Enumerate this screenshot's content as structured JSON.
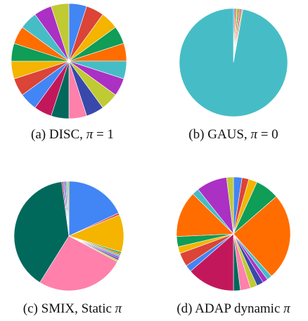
{
  "palette": [
    "#4285f4",
    "#db4437",
    "#f4b400",
    "#0f9d58",
    "#ff6d00",
    "#46bdc6",
    "#ab30c4",
    "#3949ab",
    "#c2185b",
    "#00695c",
    "#ff80ab",
    "#c0ca33"
  ],
  "chart_data": [
    {
      "type": "pie",
      "caption": {
        "prefix": "(a) DISC, ",
        "pi": "π",
        "suffix": " = 1"
      },
      "slices": [
        {
          "value": 1,
          "color": "#4285f4"
        },
        {
          "value": 1,
          "color": "#db4437"
        },
        {
          "value": 1,
          "color": "#f4b400"
        },
        {
          "value": 1,
          "color": "#0f9d58"
        },
        {
          "value": 1,
          "color": "#ff6d00"
        },
        {
          "value": 1,
          "color": "#46bdc6"
        },
        {
          "value": 1,
          "color": "#ab30c4"
        },
        {
          "value": 1,
          "color": "#c0ca33"
        },
        {
          "value": 1,
          "color": "#3949ab"
        },
        {
          "value": 1,
          "color": "#ff80ab"
        },
        {
          "value": 1,
          "color": "#00695c"
        },
        {
          "value": 1,
          "color": "#c2185b"
        },
        {
          "value": 1,
          "color": "#4285f4"
        },
        {
          "value": 1,
          "color": "#db4437"
        },
        {
          "value": 1,
          "color": "#f4b400"
        },
        {
          "value": 1,
          "color": "#0f9d58"
        },
        {
          "value": 1,
          "color": "#ff6d00"
        },
        {
          "value": 1,
          "color": "#46bdc6"
        },
        {
          "value": 1,
          "color": "#ab30c4"
        },
        {
          "value": 1,
          "color": "#c0ca33"
        }
      ]
    },
    {
      "type": "pie",
      "caption": {
        "prefix": "(b) GAUS, ",
        "pi": "π",
        "suffix": " = 0"
      },
      "slices": [
        {
          "value": 0.4,
          "color": "#4285f4"
        },
        {
          "value": 0.4,
          "color": "#db4437"
        },
        {
          "value": 0.4,
          "color": "#f4b400"
        },
        {
          "value": 0.4,
          "color": "#0f9d58"
        },
        {
          "value": 0.4,
          "color": "#ff6d00"
        },
        {
          "value": 0.4,
          "color": "#ab30c4"
        },
        {
          "value": 0.4,
          "color": "#c0ca33"
        },
        {
          "value": 97.2,
          "color": "#46bdc6"
        }
      ]
    },
    {
      "type": "pie",
      "caption": {
        "prefix": "(c) SMIX, Static ",
        "pi": "π",
        "suffix": ""
      },
      "slices": [
        {
          "value": 18.0,
          "color": "#4285f4"
        },
        {
          "value": 0.6,
          "color": "#db4437"
        },
        {
          "value": 11.0,
          "color": "#f4b400"
        },
        {
          "value": 0.5,
          "color": "#0f9d58"
        },
        {
          "value": 0.5,
          "color": "#ff6d00"
        },
        {
          "value": 0.5,
          "color": "#46bdc6"
        },
        {
          "value": 0.5,
          "color": "#ab30c4"
        },
        {
          "value": 0.5,
          "color": "#3949ab"
        },
        {
          "value": 0.5,
          "color": "#c0ca33"
        },
        {
          "value": 26.0,
          "color": "#ff80ab"
        },
        {
          "value": 38.8,
          "color": "#00695c"
        },
        {
          "value": 0.4,
          "color": "#c2185b"
        },
        {
          "value": 0.4,
          "color": "#4285f4"
        },
        {
          "value": 0.4,
          "color": "#ab30c4"
        },
        {
          "value": 0.4,
          "color": "#46bdc6"
        },
        {
          "value": 0.5,
          "color": "#c0ca33"
        }
      ]
    },
    {
      "type": "pie",
      "caption": {
        "prefix": "(d) ADAP dynamic ",
        "pi": "π",
        "suffix": ""
      },
      "slices": [
        {
          "value": 2.5,
          "color": "#4285f4"
        },
        {
          "value": 2.0,
          "color": "#db4437"
        },
        {
          "value": 2.5,
          "color": "#f4b400"
        },
        {
          "value": 7.0,
          "color": "#0f9d58"
        },
        {
          "value": 25.5,
          "color": "#ff6d00"
        },
        {
          "value": 1.5,
          "color": "#46bdc6"
        },
        {
          "value": 1.5,
          "color": "#ab30c4"
        },
        {
          "value": 2.0,
          "color": "#3949ab"
        },
        {
          "value": 2.0,
          "color": "#c0ca33"
        },
        {
          "value": 3.0,
          "color": "#ff80ab"
        },
        {
          "value": 2.0,
          "color": "#00695c"
        },
        {
          "value": 14.0,
          "color": "#c2185b"
        },
        {
          "value": 2.0,
          "color": "#4285f4"
        },
        {
          "value": 4.0,
          "color": "#db4437"
        },
        {
          "value": 2.0,
          "color": "#f4b400"
        },
        {
          "value": 3.0,
          "color": "#0f9d58"
        },
        {
          "value": 13.5,
          "color": "#ff6d00"
        },
        {
          "value": 2.0,
          "color": "#46bdc6"
        },
        {
          "value": 9.0,
          "color": "#ab30c4"
        },
        {
          "value": 2.0,
          "color": "#c0ca33"
        }
      ]
    }
  ]
}
